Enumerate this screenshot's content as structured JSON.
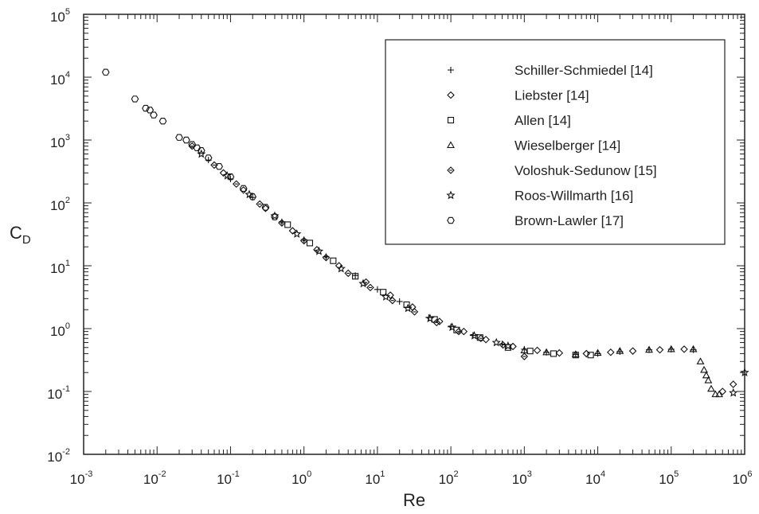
{
  "chart_data": {
    "type": "scatter",
    "title": "",
    "xlabel": "Re",
    "ylabel_main": "C",
    "ylabel_sub": "D",
    "xscale": "log",
    "yscale": "log",
    "xlim": [
      0.001,
      1000000
    ],
    "ylim": [
      0.01,
      100000
    ],
    "legend_position": "top-right",
    "grid": false,
    "x_ticks": [
      {
        "base": "10",
        "exp": "-3"
      },
      {
        "base": "10",
        "exp": "-2"
      },
      {
        "base": "10",
        "exp": "-1"
      },
      {
        "base": "10",
        "exp": "0"
      },
      {
        "base": "10",
        "exp": "1"
      },
      {
        "base": "10",
        "exp": "2"
      },
      {
        "base": "10",
        "exp": "3"
      },
      {
        "base": "10",
        "exp": "4"
      },
      {
        "base": "10",
        "exp": "5"
      },
      {
        "base": "10",
        "exp": "6"
      }
    ],
    "y_ticks": [
      {
        "base": "10",
        "exp": "-2"
      },
      {
        "base": "10",
        "exp": "-1"
      },
      {
        "base": "10",
        "exp": "0"
      },
      {
        "base": "10",
        "exp": "1"
      },
      {
        "base": "10",
        "exp": "2"
      },
      {
        "base": "10",
        "exp": "3"
      },
      {
        "base": "10",
        "exp": "4"
      },
      {
        "base": "10",
        "exp": "5"
      }
    ],
    "series": [
      {
        "name": "Schiller-Schmiedel [14]",
        "marker": "plus",
        "x": [
          0.05,
          0.1,
          0.2,
          0.5,
          1,
          2,
          5,
          10,
          20,
          50,
          100,
          200,
          500,
          1000,
          2000,
          5000,
          10000,
          20000,
          50000,
          100000,
          200000
        ],
        "y": [
          480,
          240,
          122,
          50,
          26,
          14,
          7,
          4.2,
          2.7,
          1.5,
          1.07,
          0.78,
          0.57,
          0.47,
          0.42,
          0.39,
          0.4,
          0.43,
          0.46,
          0.47,
          0.46
        ]
      },
      {
        "name": "Liebster [14]",
        "marker": "diamond",
        "x": [
          0.08,
          0.15,
          0.3,
          0.7,
          1.5,
          3,
          7,
          15,
          30,
          70,
          150,
          300,
          700,
          1500,
          3000,
          7000,
          15000,
          30000,
          70000,
          150000,
          500000,
          700000
        ],
        "y": [
          300,
          160,
          82,
          36,
          18,
          10,
          5.5,
          3.4,
          2.2,
          1.3,
          0.9,
          0.67,
          0.52,
          0.45,
          0.41,
          0.4,
          0.42,
          0.44,
          0.46,
          0.47,
          0.1,
          0.13
        ]
      },
      {
        "name": "Allen [14]",
        "marker": "square",
        "x": [
          0.6,
          1.2,
          2.5,
          5,
          12,
          25,
          60,
          120,
          250,
          600,
          1200,
          2500,
          5000,
          8000
        ],
        "y": [
          45,
          23,
          12,
          6.8,
          3.8,
          2.4,
          1.4,
          0.95,
          0.72,
          0.5,
          0.44,
          0.4,
          0.38,
          0.38
        ]
      },
      {
        "name": "Wieselberger [14]",
        "marker": "triangle",
        "x": [
          1000,
          2000,
          5000,
          10000,
          20000,
          50000,
          100000,
          200000,
          250000,
          280000,
          300000,
          320000,
          350000,
          400000,
          450000
        ],
        "y": [
          0.45,
          0.42,
          0.39,
          0.41,
          0.44,
          0.46,
          0.47,
          0.47,
          0.3,
          0.22,
          0.18,
          0.15,
          0.11,
          0.09,
          0.09
        ]
      },
      {
        "name": "Voloshuk-Sedunow [15]",
        "marker": "diamond-cross",
        "x": [
          0.03,
          0.06,
          0.12,
          0.25,
          0.5,
          1,
          2,
          4,
          8,
          16,
          32,
          64,
          128,
          256,
          512,
          1000
        ],
        "y": [
          800,
          400,
          200,
          96,
          48,
          25,
          13.5,
          7.6,
          4.5,
          2.8,
          1.85,
          1.25,
          0.9,
          0.7,
          0.55,
          0.36
        ]
      },
      {
        "name": "Roos-Willmarth [16]",
        "marker": "star",
        "x": [
          0.04,
          0.09,
          0.18,
          0.4,
          0.8,
          1.6,
          3.2,
          6.4,
          13,
          26,
          52,
          104,
          208,
          416,
          600,
          700000,
          1000000
        ],
        "y": [
          600,
          270,
          136,
          62,
          32,
          17,
          9,
          5.2,
          3.2,
          2.1,
          1.45,
          1.05,
          0.77,
          0.6,
          0.53,
          0.095,
          0.2
        ]
      },
      {
        "name": "Brown-Lawler [17]",
        "marker": "hexagon",
        "x": [
          0.002,
          0.005,
          0.007,
          0.008,
          0.009,
          0.012,
          0.02,
          0.025,
          0.03,
          0.035,
          0.04,
          0.05,
          0.07,
          0.1,
          0.15,
          0.2,
          0.3,
          0.4
        ],
        "y": [
          12000,
          4500,
          3200,
          3000,
          2500,
          2000,
          1100,
          1000,
          850,
          750,
          680,
          520,
          380,
          260,
          170,
          125,
          85,
          60
        ]
      }
    ]
  }
}
